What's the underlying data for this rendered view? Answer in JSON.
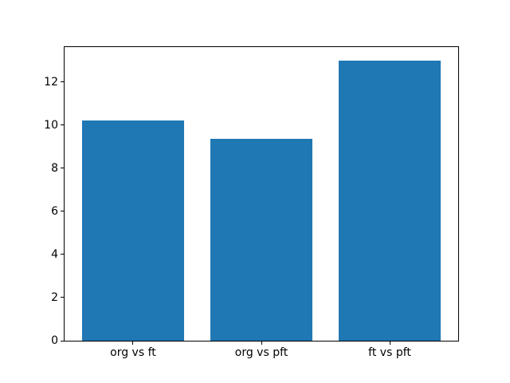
{
  "figure": {
    "background": "#ffffff",
    "axis_color": "#000000"
  },
  "chart_data": {
    "type": "bar",
    "title": "",
    "xlabel": "",
    "ylabel": "",
    "categories": [
      "org vs ft",
      "org vs pft",
      "ft vs pft"
    ],
    "values": [
      10.2,
      9.35,
      13.0
    ],
    "bar_color": "#1f77b4",
    "bar_width": 0.8,
    "yticks": [
      0,
      2,
      4,
      6,
      8,
      10,
      12
    ],
    "ylim": [
      0,
      13.65
    ],
    "xlim": [
      -0.54,
      2.54
    ],
    "grid": false,
    "legend_position": "none"
  }
}
